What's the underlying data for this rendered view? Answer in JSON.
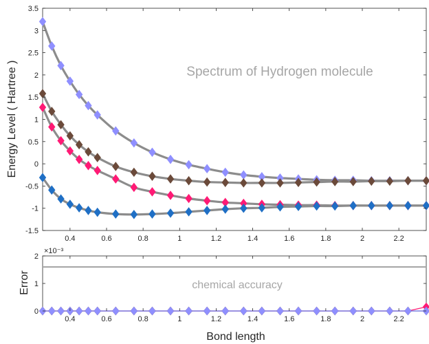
{
  "chart_data": [
    {
      "type": "line",
      "title": "Spectrum of Hydrogen molecule",
      "xlabel": "",
      "ylabel": "Energy Level ( Hartree )",
      "xlim": [
        0.25,
        2.35
      ],
      "ylim": [
        -1.5,
        3.5
      ],
      "xticks": [
        "0.4",
        "0.6",
        "0.8",
        "1",
        "1.2",
        "1.4",
        "1.6",
        "1.8",
        "2",
        "2.2"
      ],
      "xtick_values": [
        0.4,
        0.6,
        0.8,
        1.0,
        1.2,
        1.4,
        1.6,
        1.8,
        2.0,
        2.2
      ],
      "yticks": [
        "-1.5",
        "-1",
        "-0.5",
        "0",
        "0.5",
        "1",
        "1.5",
        "2",
        "2.5",
        "3",
        "3.5"
      ],
      "ytick_values": [
        -1.5,
        -1,
        -0.5,
        0,
        0.5,
        1,
        1.5,
        2,
        2.5,
        3,
        3.5
      ],
      "grid": false,
      "x": [
        0.25,
        0.3,
        0.35,
        0.4,
        0.45,
        0.5,
        0.55,
        0.65,
        0.75,
        0.85,
        0.95,
        1.05,
        1.15,
        1.25,
        1.35,
        1.45,
        1.55,
        1.65,
        1.75,
        1.85,
        1.95,
        2.05,
        2.15,
        2.25,
        2.35
      ],
      "line_color": "#8c8c8c",
      "series": [
        {
          "color": "#8f8fff",
          "values": [
            3.2,
            2.65,
            2.21,
            1.86,
            1.56,
            1.31,
            1.1,
            0.74,
            0.47,
            0.26,
            0.1,
            -0.02,
            -0.11,
            -0.19,
            -0.25,
            -0.29,
            -0.32,
            -0.34,
            -0.36,
            -0.37,
            -0.37,
            -0.38,
            -0.38,
            -0.38,
            -0.38
          ]
        },
        {
          "color": "#6b4a3a",
          "values": [
            1.58,
            1.18,
            0.88,
            0.63,
            0.43,
            0.27,
            0.14,
            -0.06,
            -0.19,
            -0.28,
            -0.34,
            -0.38,
            -0.41,
            -0.42,
            -0.43,
            -0.43,
            -0.43,
            -0.42,
            -0.41,
            -0.4,
            -0.4,
            -0.39,
            -0.39,
            -0.38,
            -0.38
          ]
        },
        {
          "color": "#ff1a75",
          "values": [
            1.27,
            0.83,
            0.52,
            0.29,
            0.1,
            -0.04,
            -0.15,
            -0.34,
            -0.53,
            -0.63,
            -0.71,
            -0.78,
            -0.83,
            -0.87,
            -0.89,
            -0.91,
            -0.92,
            -0.93,
            -0.93,
            -0.94,
            -0.94,
            -0.94,
            -0.94,
            -0.94,
            -0.94
          ]
        },
        {
          "color": "#1f6fc5",
          "values": [
            -0.31,
            -0.59,
            -0.79,
            -0.91,
            -0.99,
            -1.05,
            -1.09,
            -1.13,
            -1.14,
            -1.13,
            -1.11,
            -1.08,
            -1.05,
            -1.02,
            -1.0,
            -0.99,
            -0.97,
            -0.96,
            -0.95,
            -0.95,
            -0.94,
            -0.94,
            -0.94,
            -0.94,
            -0.94
          ]
        }
      ]
    },
    {
      "type": "line",
      "xlabel": "Bond length",
      "ylabel": "Error",
      "exponent_label": "×10⁻³",
      "xlim": [
        0.25,
        2.35
      ],
      "ylim": [
        0,
        2
      ],
      "xticks": [
        "0.4",
        "0.6",
        "0.8",
        "1",
        "1.2",
        "1.4",
        "1.6",
        "1.8",
        "2",
        "2.2"
      ],
      "xtick_values": [
        0.4,
        0.6,
        0.8,
        1.0,
        1.2,
        1.4,
        1.6,
        1.8,
        2.0,
        2.2
      ],
      "yticks": [
        "0",
        "1",
        "2"
      ],
      "ytick_values": [
        0,
        1,
        2
      ],
      "grid": false,
      "reference_line": {
        "label": "chemical accuracy",
        "value": 1.6,
        "color": "#a6a6a6"
      },
      "x": [
        0.25,
        0.3,
        0.35,
        0.4,
        0.45,
        0.5,
        0.55,
        0.65,
        0.75,
        0.85,
        0.95,
        1.05,
        1.15,
        1.25,
        1.35,
        1.45,
        1.55,
        1.65,
        1.75,
        1.85,
        1.95,
        2.05,
        2.15,
        2.25,
        2.35
      ],
      "series": [
        {
          "color": "#ff1a75",
          "values": [
            0,
            0,
            0,
            0,
            0,
            0,
            0,
            0,
            0,
            0,
            0,
            0,
            0,
            0,
            0,
            0,
            0,
            0,
            0,
            0,
            0,
            0,
            0,
            0,
            0.15
          ]
        },
        {
          "color": "#1f6fc5",
          "values": [
            0,
            0,
            0,
            0,
            0,
            0,
            0,
            0,
            0,
            0,
            0,
            0,
            0,
            0,
            0,
            0,
            0,
            0,
            0,
            0,
            0,
            0,
            0,
            0,
            0
          ]
        },
        {
          "color": "#6b4a3a",
          "values": [
            0,
            0,
            0,
            0,
            0,
            0,
            0,
            0,
            0,
            0,
            0,
            0,
            0,
            0,
            0,
            0,
            0,
            0,
            0,
            0,
            0,
            0,
            0,
            0,
            0
          ]
        },
        {
          "color": "#8f8fff",
          "values": [
            0,
            0,
            0,
            0,
            0,
            0,
            0,
            0,
            0,
            0,
            0,
            0,
            0,
            0,
            0,
            0,
            0,
            0,
            0,
            0,
            0,
            0,
            0,
            0,
            0
          ]
        }
      ]
    }
  ]
}
